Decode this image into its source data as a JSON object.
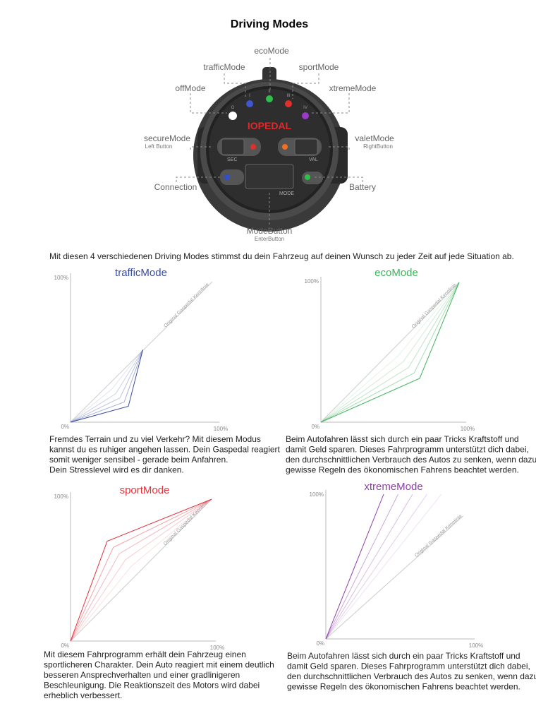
{
  "title": "Driving Modes",
  "device": {
    "brand": "IOPEDAL",
    "button_left": "SEC",
    "button_right": "VAL",
    "button_mode": "MODE",
    "leds": [
      "O",
      "I",
      "II",
      "III",
      "IV"
    ],
    "labels": {
      "eco": "ecoMode",
      "traffic": "trafficMode",
      "sport": "sportMode",
      "off": "offMode",
      "xtreme": "xtremeMode",
      "secure": "secureMode",
      "secure_sub": "Left Button",
      "valet": "valetMode",
      "valet_sub": "RightButton",
      "connection": "Connection",
      "battery": "Battery",
      "mode": "ModeButton",
      "mode_sub": "EnterButton"
    }
  },
  "intro": "Mit diesen 4 verschiedenen Driving Modes stimmst du dein Fahrzeug auf deinen Wunsch zu jeder Zeit auf jede Situation ab.",
  "panels": [
    {
      "title": "trafficMode",
      "color": "#3b4da0",
      "axis_top": "100%",
      "axis_origin": "0%",
      "axis_right": "100%",
      "line_label": "Original Gaspedal Kennlinie",
      "text": [
        "Fremdes Terrain und zu viel Verkehr? Mit diesem Modus",
        "kannst du es ruhiger angehen lassen. Dein Gaspedal reagiert",
        "somit weniger sensibel - gerade beim Anfahren.",
        "Dein Stresslevel wird es dir danken."
      ]
    },
    {
      "title": "ecoMode",
      "color": "#3fb45c",
      "axis_top": "100%",
      "axis_origin": "0%",
      "axis_right": "100%",
      "line_label": "Original Gaspedal Kennlinie",
      "text": [
        "Beim Autofahren lässt sich durch ein paar Tricks Kraftstoff und",
        "damit Geld sparen. Dieses Fahrprogramm unterstützt dich dabei,",
        "den durchschnittlichen Verbrauch des Autos zu senken,  wenn dazu",
        "gewisse Regeln des ökonomischen Fahrens beachtet werden."
      ]
    },
    {
      "title": "sportMode",
      "color": "#e5323a",
      "axis_top": "100%",
      "axis_origin": "0%",
      "axis_right": "100%",
      "line_label": "Original Gaspedal Kennlinie",
      "text": [
        "Mit diesem Fahrprogramm erhält dein Fahrzeug einen",
        "sportlicheren Charakter. Dein Auto reagiert mit einem deutlich",
        "besseren Ansprechverhalten und einer gradlinigeren",
        "Beschleunigung. Die Reaktionszeit des Motors wird dabei",
        "erheblich verbessert."
      ]
    },
    {
      "title": "xtremeMode",
      "color": "#8e3fa8",
      "axis_top": "100%",
      "axis_origin": "0%",
      "axis_right": "100%",
      "line_label": "Original Gaspedal Kennlinie",
      "text": [
        "Beim Autofahren lässt sich durch ein paar Tricks Kraftstoff und",
        "damit Geld sparen. Dieses Fahrprogramm unterstützt dich dabei,",
        "den durchschnittlichen Verbrauch des Autos zu senken,  wenn dazu",
        "gewisse Regeln des ökonomischen Fahrens beachtet werden."
      ]
    }
  ]
}
